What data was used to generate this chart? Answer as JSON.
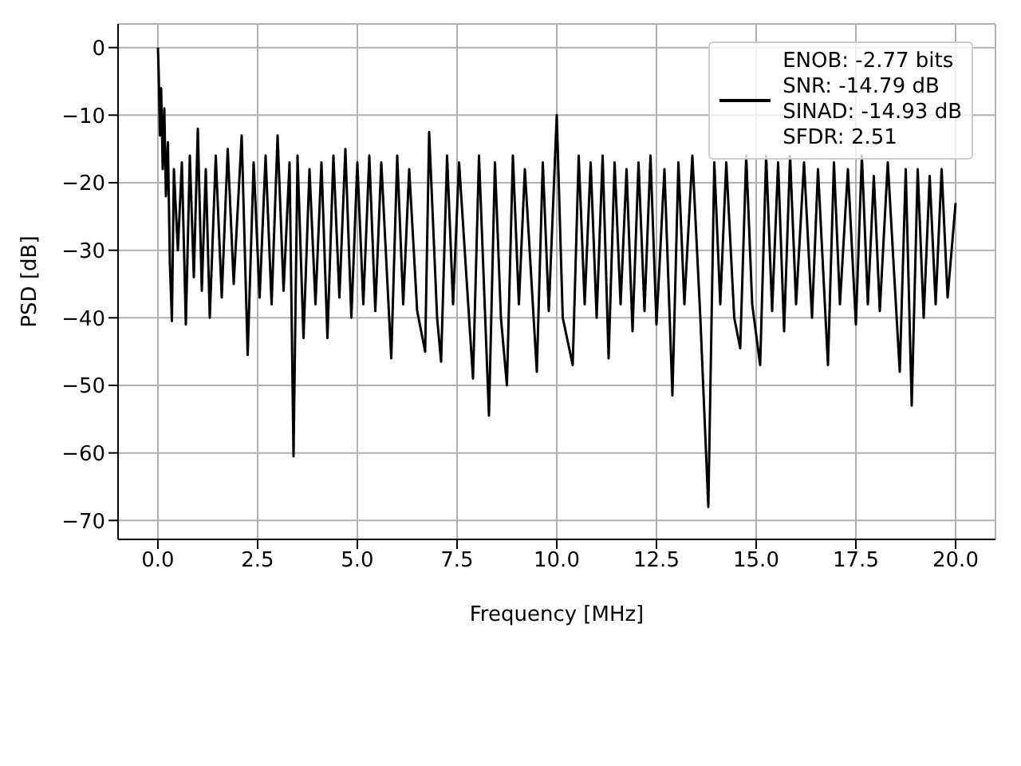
{
  "chart_data": {
    "type": "line",
    "xlabel": "Frequency [MHz]",
    "ylabel": "PSD [dB]",
    "xlim": [
      -1,
      21
    ],
    "ylim": [
      -72.8,
      3.5
    ],
    "xticks": [
      {
        "value": 0,
        "label": "0.0"
      },
      {
        "value": 2.5,
        "label": "2.5"
      },
      {
        "value": 5,
        "label": "5.0"
      },
      {
        "value": 7.5,
        "label": "7.5"
      },
      {
        "value": 10,
        "label": "10.0"
      },
      {
        "value": 12.5,
        "label": "12.5"
      },
      {
        "value": 15,
        "label": "15.0"
      },
      {
        "value": 17.5,
        "label": "17.5"
      },
      {
        "value": 20,
        "label": "20.0"
      }
    ],
    "yticks": [
      0,
      {
        "value": -10,
        "label": "−10"
      },
      {
        "value": -20,
        "label": "−20"
      },
      {
        "value": -30,
        "label": "−30"
      },
      {
        "value": -40,
        "label": "−40"
      },
      {
        "value": -50,
        "label": "−50"
      },
      {
        "value": -60,
        "label": "−60"
      },
      {
        "value": -70,
        "label": "−70"
      }
    ],
    "grid": true,
    "legend": "top right",
    "x": [
      0,
      0.02,
      0.05,
      0.08,
      0.12,
      0.16,
      0.2,
      0.25,
      0.3,
      0.35,
      0.4,
      0.5,
      0.6,
      0.7,
      0.8,
      0.9,
      1.0,
      1.1,
      1.2,
      1.3,
      1.45,
      1.6,
      1.75,
      1.9,
      2.1,
      2.25,
      2.4,
      2.55,
      2.7,
      2.85,
      3.0,
      3.15,
      3.3,
      3.4,
      3.5,
      3.65,
      3.8,
      3.95,
      4.1,
      4.25,
      4.4,
      4.55,
      4.7,
      4.85,
      5.0,
      5.15,
      5.3,
      5.45,
      5.6,
      5.85,
      6.0,
      6.15,
      6.3,
      6.5,
      6.7,
      6.8,
      7.0,
      7.1,
      7.25,
      7.4,
      7.55,
      7.9,
      8.05,
      8.3,
      8.45,
      8.6,
      8.75,
      8.9,
      9.05,
      9.2,
      9.5,
      9.65,
      9.8,
      10.0,
      10.15,
      10.4,
      10.55,
      10.7,
      10.85,
      11.0,
      11.15,
      11.3,
      11.45,
      11.6,
      11.75,
      11.9,
      12.05,
      12.2,
      12.35,
      12.5,
      12.7,
      12.9,
      13.05,
      13.2,
      13.4,
      13.6,
      13.8,
      13.95,
      14.1,
      14.25,
      14.45,
      14.6,
      14.75,
      14.9,
      15.1,
      15.25,
      15.4,
      15.55,
      15.7,
      15.85,
      16.0,
      16.2,
      16.4,
      16.55,
      16.8,
      16.95,
      17.1,
      17.3,
      17.5,
      17.65,
      17.8,
      17.95,
      18.1,
      18.3,
      18.6,
      18.75,
      18.9,
      19.05,
      19.2,
      19.35,
      19.5,
      19.65,
      19.8,
      20.0
    ],
    "series": [
      {
        "name": "ENOB: -2.77 bits\nSNR: -14.79 dB\nSINAD: -14.93 dB\nSFDR: 2.51",
        "color": "#000000",
        "values": [
          0,
          -4,
          -13,
          -6,
          -18,
          -9,
          -22,
          -14,
          -32,
          -40.5,
          -18,
          -30,
          -17,
          -41,
          -16,
          -34,
          -12,
          -36,
          -18,
          -40,
          -16,
          -37,
          -15,
          -35,
          -13,
          -45.5,
          -17,
          -37,
          -16,
          -38,
          -13,
          -36,
          -17,
          -60.5,
          -16,
          -43,
          -18,
          -38,
          -17,
          -43,
          -16,
          -37,
          -15,
          -40,
          -17,
          -38,
          -16,
          -39,
          -17,
          -46,
          -16,
          -38,
          -18,
          -39,
          -45,
          -12.5,
          -40,
          -46.5,
          -16,
          -38,
          -17,
          -49,
          -16,
          -54.5,
          -17,
          -40,
          -50,
          -16,
          -38,
          -18,
          -48,
          -17,
          -39,
          -10,
          -40,
          -47,
          -16,
          -38,
          -17,
          -40,
          -16,
          -46,
          -17,
          -38,
          -18,
          -42,
          -17,
          -39,
          -16,
          -41,
          -18,
          -51.5,
          -17,
          -38,
          -16,
          -40,
          -68,
          -17,
          -38,
          -17,
          -40,
          -44.5,
          -16,
          -38,
          -47,
          -16,
          -39,
          -17,
          -42,
          -16,
          -38,
          -17,
          -40,
          -18,
          -47,
          -17,
          -38,
          -18,
          -41,
          -16,
          -38,
          -19,
          -39,
          -17,
          -48,
          -18,
          -53,
          -18,
          -40,
          -19,
          -38,
          -18,
          -37,
          -23
        ]
      }
    ]
  }
}
